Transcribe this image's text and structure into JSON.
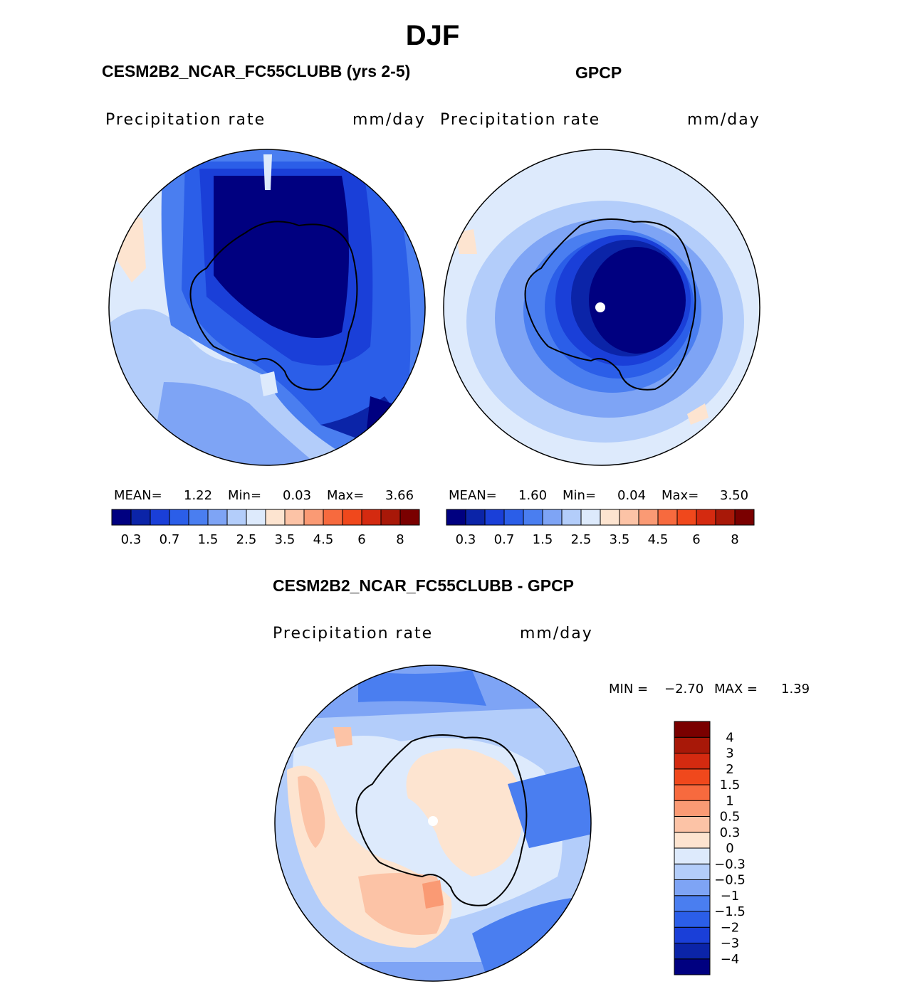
{
  "title": "DJF",
  "panels": [
    {
      "id": "model",
      "heading": "CESM2B2_NCAR_FC55CLUBB (yrs 2-5)",
      "variable": "Precipitation rate",
      "units": "mm/day",
      "stats": {
        "mean_label": "MEAN=",
        "mean": "1.22",
        "min_label": "Min=",
        "min": "0.03",
        "max_label": "Max=",
        "max": "3.66"
      }
    },
    {
      "id": "obs",
      "heading": "GPCP",
      "variable": "Precipitation rate",
      "units": "mm/day",
      "stats": {
        "mean_label": "MEAN=",
        "mean": "1.60",
        "min_label": "Min=",
        "min": "0.04",
        "max_label": "Max=",
        "max": "3.50"
      }
    }
  ],
  "colorbar_abs": {
    "colors": [
      "#000080",
      "#0b24a8",
      "#1a3fd8",
      "#2b5ee8",
      "#4a7ef0",
      "#7ea4f5",
      "#b3cdfa",
      "#ddeafc",
      "#fde4d0",
      "#fcc3a6",
      "#fa9a74",
      "#f76a3e",
      "#f0481c",
      "#d42a10",
      "#a81808",
      "#7a0000"
    ],
    "tick_labels": [
      "0.3",
      "0.7",
      "1.5",
      "2.5",
      "3.5",
      "4.5",
      "6",
      "8"
    ]
  },
  "diff": {
    "heading": "CESM2B2_NCAR_FC55CLUBB - GPCP",
    "variable": "Precipitation rate",
    "units": "mm/day",
    "min_label": "MIN =",
    "min": "−2.70",
    "max_label": "MAX =",
    "max": "1.39",
    "colorbar": {
      "colors": [
        "#000080",
        "#0b24a8",
        "#1a3fd8",
        "#2b5ee8",
        "#4a7ef0",
        "#7ea4f5",
        "#b3cdfa",
        "#ddeafc",
        "#fde4d0",
        "#fcc3a6",
        "#fa9a74",
        "#f76a3e",
        "#f0481c",
        "#d42a10",
        "#a81808",
        "#7a0000"
      ],
      "tick_labels": [
        "−4",
        "−3",
        "−2",
        "−1.5",
        "−1",
        "−0.5",
        "−0.3",
        "0",
        "0.3",
        "0.5",
        "1",
        "1.5",
        "2",
        "3",
        "4"
      ]
    }
  }
}
